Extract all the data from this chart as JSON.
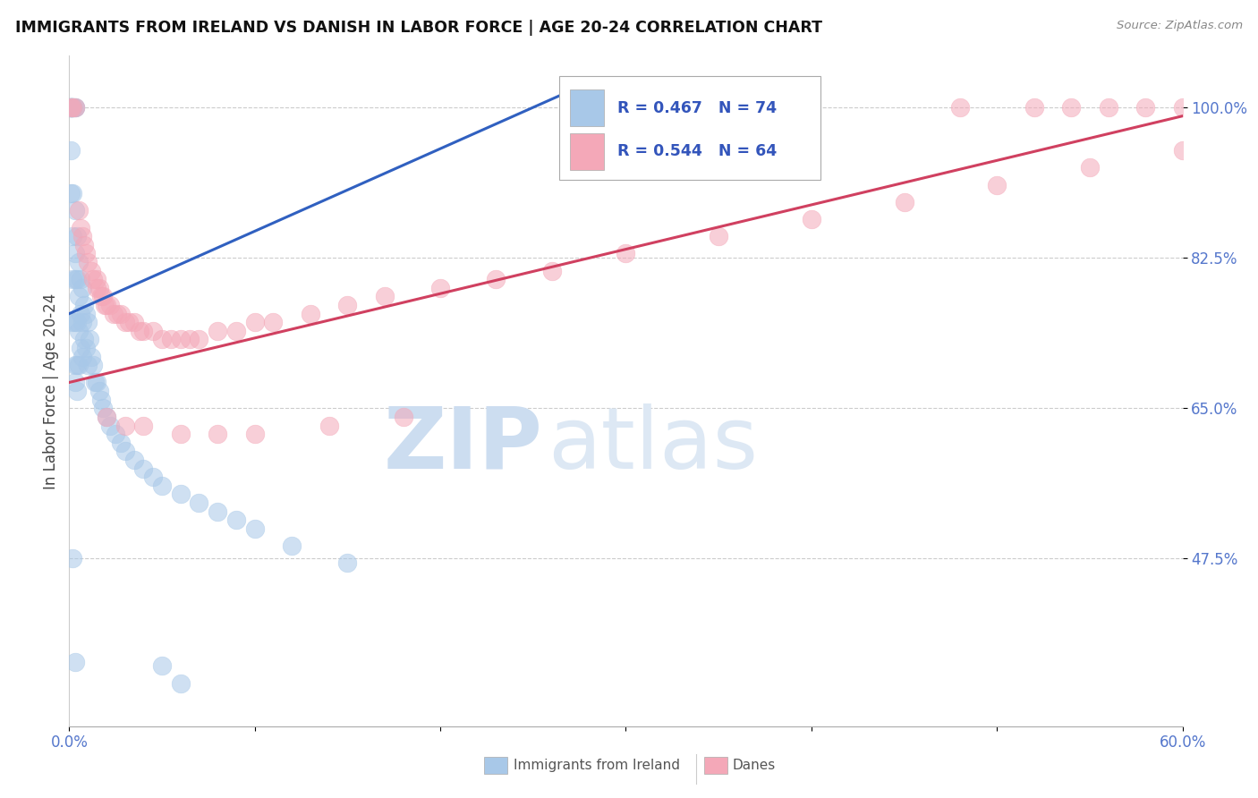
{
  "title": "IMMIGRANTS FROM IRELAND VS DANISH IN LABOR FORCE | AGE 20-24 CORRELATION CHART",
  "source": "Source: ZipAtlas.com",
  "ylabel": "In Labor Force | Age 20-24",
  "xlim": [
    0.0,
    0.6
  ],
  "ylim": [
    0.28,
    1.06
  ],
  "legend_ireland_R": "R = 0.467",
  "legend_ireland_N": "N = 74",
  "legend_danes_R": "R = 0.544",
  "legend_danes_N": "N = 64",
  "ireland_color": "#a8c8e8",
  "danes_color": "#f4a8b8",
  "ireland_line_color": "#3060c0",
  "danes_line_color": "#d04060",
  "background_color": "#ffffff",
  "watermark_zip": "ZIP",
  "watermark_atlas": "atlas",
  "watermark_color": "#ccddf0",
  "ireland_x": [
    0.001,
    0.001,
    0.001,
    0.001,
    0.001,
    0.001,
    0.001,
    0.001,
    0.002,
    0.002,
    0.002,
    0.002,
    0.002,
    0.002,
    0.002,
    0.002,
    0.002,
    0.003,
    0.003,
    0.003,
    0.003,
    0.003,
    0.003,
    0.003,
    0.004,
    0.004,
    0.004,
    0.004,
    0.005,
    0.005,
    0.005,
    0.005,
    0.006,
    0.006,
    0.006,
    0.007,
    0.007,
    0.007,
    0.008,
    0.008,
    0.009,
    0.009,
    0.01,
    0.01,
    0.011,
    0.012,
    0.013,
    0.014,
    0.015,
    0.016,
    0.017,
    0.018,
    0.02,
    0.022,
    0.025,
    0.028,
    0.03,
    0.035,
    0.04,
    0.045,
    0.05,
    0.06,
    0.07,
    0.08,
    0.09,
    0.1,
    0.12,
    0.15,
    0.002,
    0.003,
    0.003,
    0.004,
    0.05,
    0.06
  ],
  "ireland_y": [
    1.0,
    1.0,
    1.0,
    1.0,
    1.0,
    1.0,
    0.95,
    0.9,
    1.0,
    1.0,
    1.0,
    1.0,
    1.0,
    0.9,
    0.85,
    0.8,
    0.75,
    1.0,
    1.0,
    0.88,
    0.83,
    0.8,
    0.75,
    0.7,
    0.85,
    0.8,
    0.75,
    0.7,
    0.82,
    0.78,
    0.74,
    0.7,
    0.8,
    0.76,
    0.72,
    0.79,
    0.75,
    0.71,
    0.77,
    0.73,
    0.76,
    0.72,
    0.75,
    0.7,
    0.73,
    0.71,
    0.7,
    0.68,
    0.68,
    0.67,
    0.66,
    0.65,
    0.64,
    0.63,
    0.62,
    0.61,
    0.6,
    0.59,
    0.58,
    0.57,
    0.56,
    0.55,
    0.54,
    0.53,
    0.52,
    0.51,
    0.49,
    0.47,
    0.475,
    0.355,
    0.68,
    0.67,
    0.35,
    0.33
  ],
  "danes_x": [
    0.001,
    0.002,
    0.003,
    0.005,
    0.006,
    0.007,
    0.008,
    0.009,
    0.01,
    0.012,
    0.013,
    0.015,
    0.015,
    0.016,
    0.017,
    0.018,
    0.019,
    0.02,
    0.022,
    0.024,
    0.026,
    0.028,
    0.03,
    0.032,
    0.035,
    0.038,
    0.04,
    0.045,
    0.05,
    0.055,
    0.06,
    0.065,
    0.07,
    0.08,
    0.09,
    0.1,
    0.11,
    0.13,
    0.15,
    0.17,
    0.2,
    0.23,
    0.26,
    0.3,
    0.35,
    0.4,
    0.45,
    0.5,
    0.55,
    0.6,
    0.6,
    0.58,
    0.56,
    0.54,
    0.52,
    0.48,
    0.02,
    0.03,
    0.04,
    0.06,
    0.08,
    0.1,
    0.14,
    0.18
  ],
  "danes_y": [
    1.0,
    1.0,
    1.0,
    0.88,
    0.86,
    0.85,
    0.84,
    0.83,
    0.82,
    0.81,
    0.8,
    0.8,
    0.79,
    0.79,
    0.78,
    0.78,
    0.77,
    0.77,
    0.77,
    0.76,
    0.76,
    0.76,
    0.75,
    0.75,
    0.75,
    0.74,
    0.74,
    0.74,
    0.73,
    0.73,
    0.73,
    0.73,
    0.73,
    0.74,
    0.74,
    0.75,
    0.75,
    0.76,
    0.77,
    0.78,
    0.79,
    0.8,
    0.81,
    0.83,
    0.85,
    0.87,
    0.89,
    0.91,
    0.93,
    0.95,
    1.0,
    1.0,
    1.0,
    1.0,
    1.0,
    1.0,
    0.64,
    0.63,
    0.63,
    0.62,
    0.62,
    0.62,
    0.63,
    0.64
  ]
}
